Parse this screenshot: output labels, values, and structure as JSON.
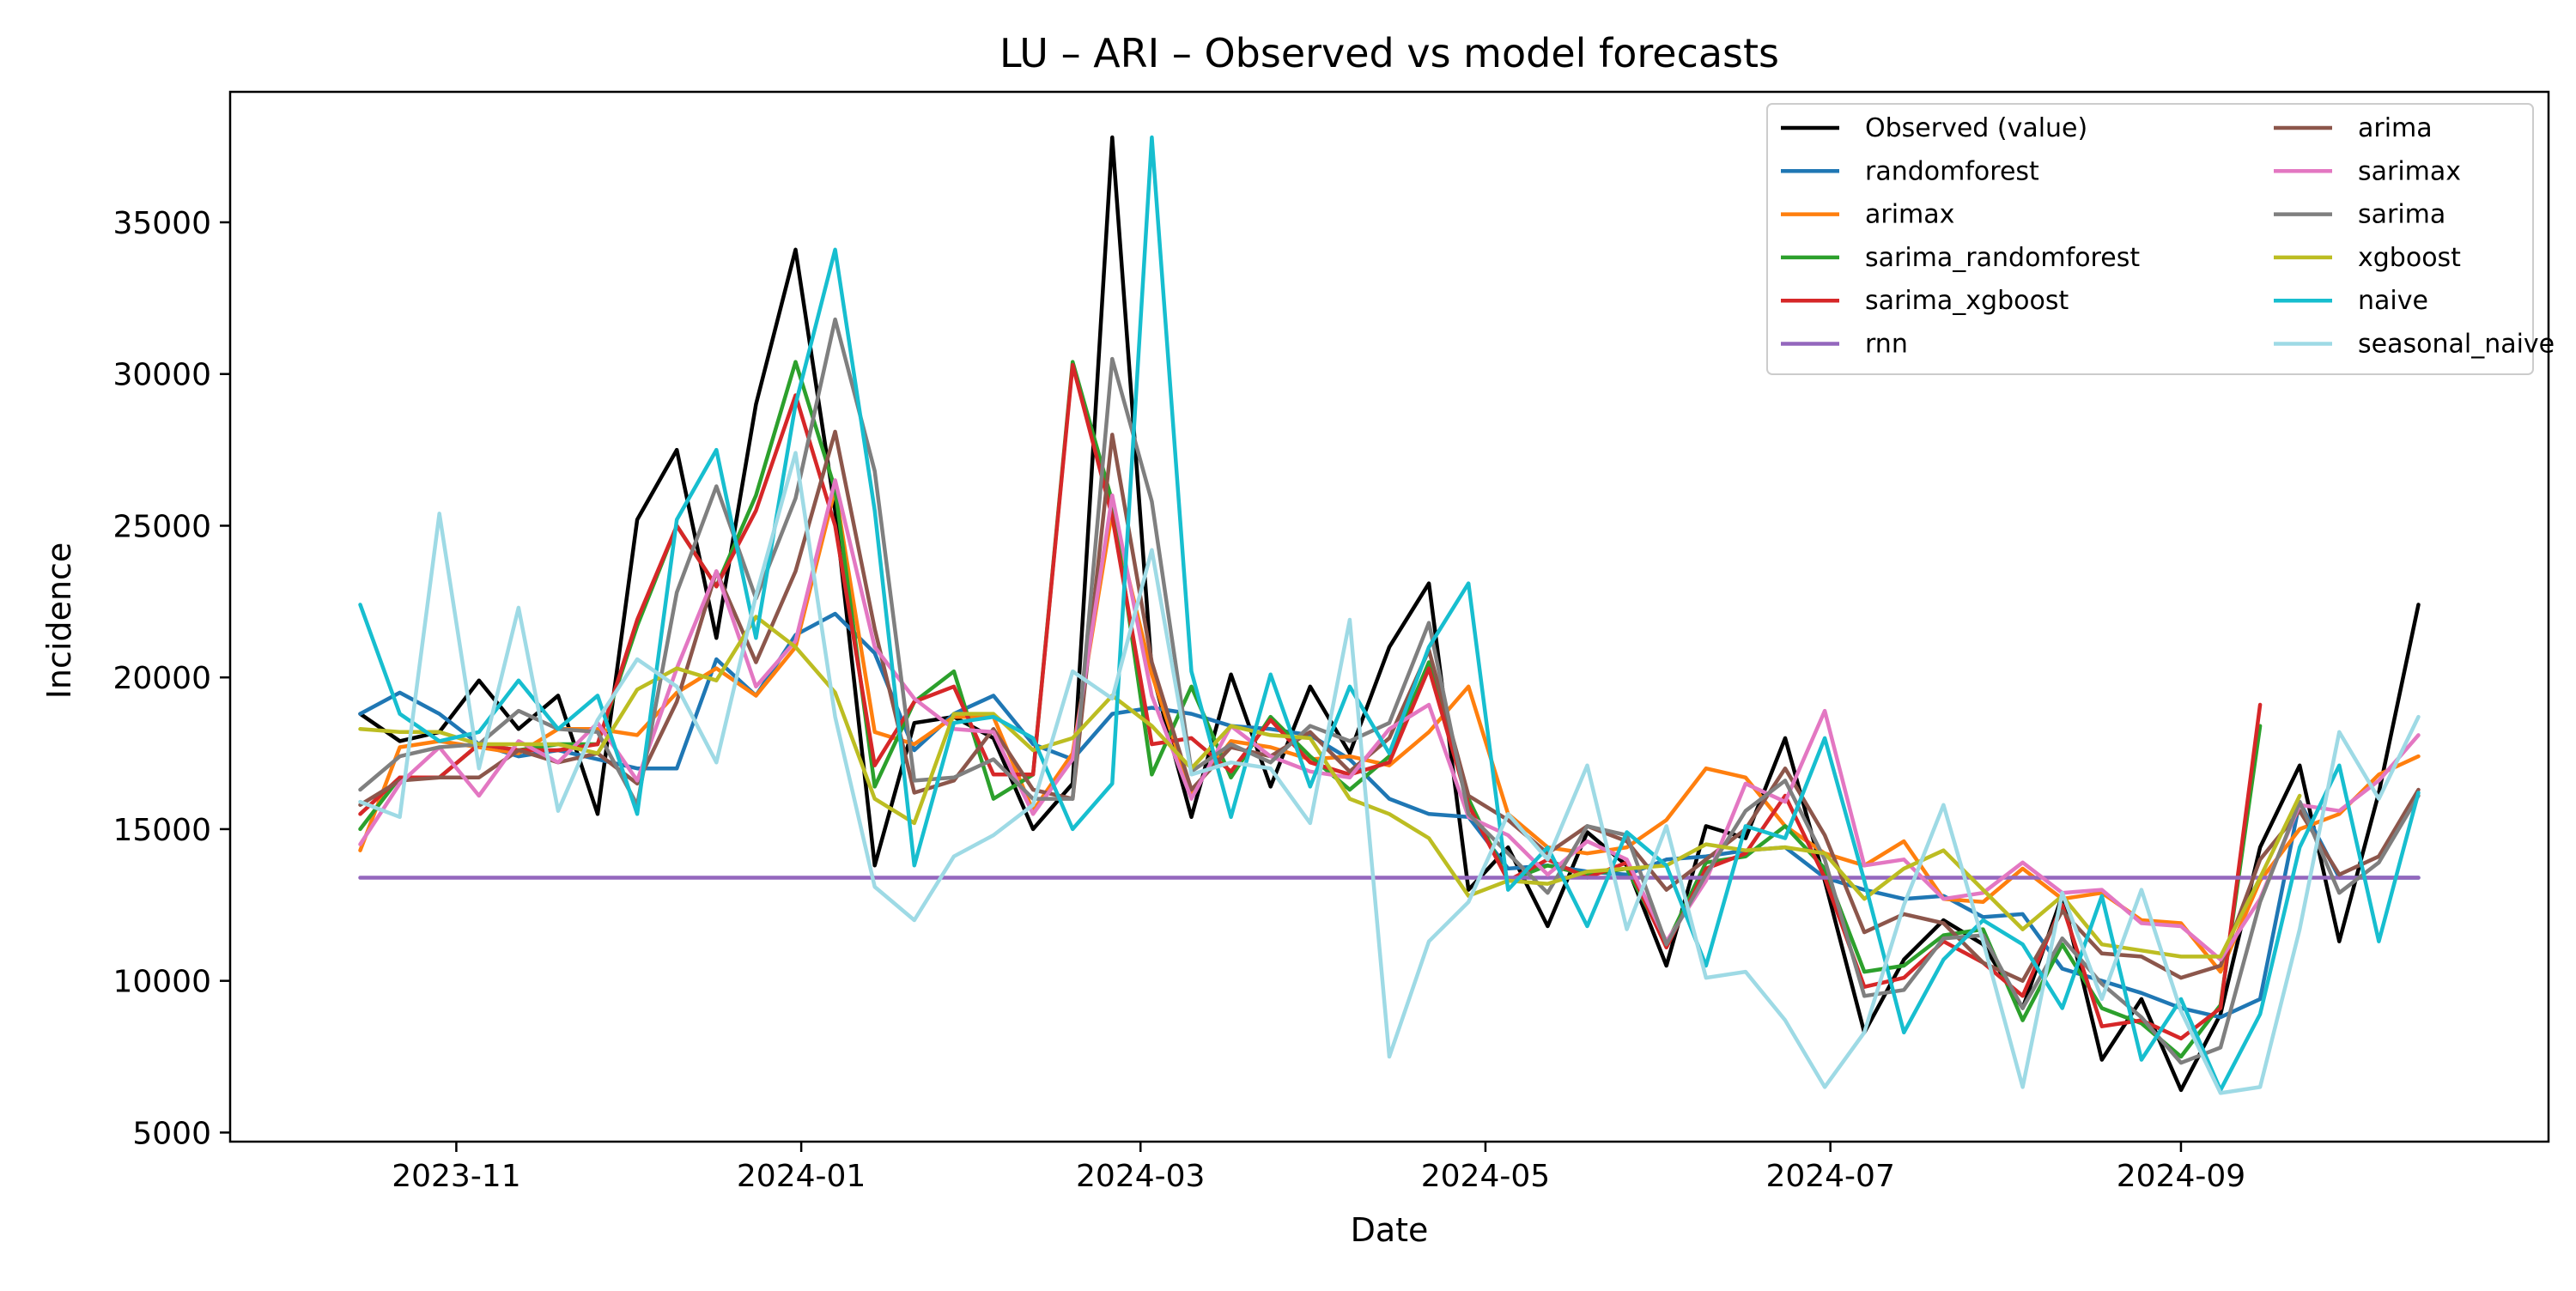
{
  "chart_data": {
    "type": "line",
    "title": "LU – ARI – Observed vs model forecasts",
    "xlabel": "Date",
    "ylabel": "Incidence",
    "x_ticks": [
      "2023-11",
      "2024-01",
      "2024-03",
      "2024-05",
      "2024-07",
      "2024-09"
    ],
    "y_ticks": [
      "5000",
      "10000",
      "15000",
      "20000",
      "25000",
      "30000",
      "35000"
    ],
    "legend_position": "top-right",
    "legend_columns": 2,
    "x_start": "2023-10-15",
    "x_end": "2024-10-13",
    "x": [
      "2023-10-15",
      "2023-10-22",
      "2023-10-29",
      "2023-11-05",
      "2023-11-12",
      "2023-11-19",
      "2023-11-26",
      "2023-12-03",
      "2023-12-10",
      "2023-12-17",
      "2023-12-24",
      "2023-12-31",
      "2024-01-07",
      "2024-01-14",
      "2024-01-21",
      "2024-01-28",
      "2024-02-04",
      "2024-02-11",
      "2024-02-18",
      "2024-02-25",
      "2024-03-03",
      "2024-03-10",
      "2024-03-17",
      "2024-03-24",
      "2024-03-31",
      "2024-04-07",
      "2024-04-14",
      "2024-04-21",
      "2024-04-28",
      "2024-05-05",
      "2024-05-12",
      "2024-05-19",
      "2024-05-26",
      "2024-06-02",
      "2024-06-09",
      "2024-06-16",
      "2024-06-23",
      "2024-06-30",
      "2024-07-07",
      "2024-07-14",
      "2024-07-21",
      "2024-07-28",
      "2024-08-04",
      "2024-08-11",
      "2024-08-18",
      "2024-08-25",
      "2024-09-01",
      "2024-09-08",
      "2024-09-15",
      "2024-09-22",
      "2024-09-29",
      "2024-10-06",
      "2024-10-13"
    ],
    "ylim": [
      4700,
      39300
    ],
    "series": [
      {
        "name": "Observed (value)",
        "color": "#000000",
        "values": [
          18800,
          17900,
          18200,
          19900,
          18300,
          19400,
          15500,
          25200,
          27500,
          21300,
          29000,
          34100,
          25500,
          13800,
          18500,
          18700,
          18000,
          15000,
          16500,
          37800,
          20200,
          15400,
          20100,
          16400,
          19700,
          17500,
          21000,
          23100,
          13000,
          14400,
          11800,
          14900,
          13800,
          10500,
          15100,
          14700,
          18000,
          13300,
          8300,
          10700,
          12000,
          11200,
          9100,
          12800,
          7400,
          9400,
          6400,
          8900,
          14400,
          17100,
          11300,
          16200,
          22400
        ]
      },
      {
        "name": "randomforest",
        "color": "#1f77b4",
        "values": [
          18800,
          19500,
          18800,
          17800,
          17400,
          17600,
          17300,
          17000,
          17000,
          20600,
          19400,
          21400,
          22100,
          20800,
          17600,
          18800,
          19400,
          17800,
          17300,
          18800,
          19000,
          18800,
          18400,
          18300,
          18100,
          17300,
          16000,
          15500,
          15400,
          13700,
          13800,
          13600,
          13500,
          14000,
          14100,
          14300,
          14400,
          13400,
          13000,
          12700,
          12800,
          12100,
          12200,
          10400,
          10000,
          9600,
          9100,
          8800,
          9400,
          15900,
          13400,
          13400,
          13400
        ]
      },
      {
        "name": "arimax",
        "color": "#ff7f0e",
        "values": [
          14300,
          17700,
          17900,
          17700,
          17500,
          18300,
          18300,
          18100,
          19500,
          20300,
          19400,
          21000,
          26200,
          18200,
          17800,
          18700,
          18700,
          15600,
          17500,
          25500,
          20100,
          16200,
          17900,
          17700,
          17300,
          17400,
          17100,
          18200,
          19700,
          15500,
          14400,
          14200,
          14400,
          15300,
          17000,
          16700,
          15100,
          14200,
          13800,
          14600,
          12700,
          12600,
          13700,
          12700,
          12900,
          12000,
          11900,
          10300,
          13300,
          15000,
          15500,
          16800,
          17400
        ]
      },
      {
        "name": "sarima_randomforest",
        "color": "#2ca02c",
        "values": [
          15000,
          16700,
          16700,
          17800,
          17600,
          17800,
          17800,
          21700,
          25000,
          23000,
          26000,
          30400,
          26200,
          16400,
          19200,
          20200,
          16000,
          16800,
          30400,
          25800,
          16800,
          19700,
          16700,
          18700,
          17400,
          16300,
          17400,
          20500,
          16000,
          13300,
          13800,
          13500,
          13700,
          11200,
          13900,
          14100,
          15100,
          13700,
          10300,
          10500,
          11500,
          11700,
          8700,
          11200,
          9100,
          8600,
          7500,
          9200,
          18400,
          null,
          null,
          null,
          null
        ]
      },
      {
        "name": "sarima_xgboost",
        "color": "#d62728",
        "values": [
          15500,
          16700,
          16700,
          17800,
          17600,
          17600,
          17800,
          21900,
          25000,
          23000,
          25500,
          29300,
          25000,
          17100,
          19200,
          19700,
          16800,
          16800,
          30300,
          25300,
          17800,
          18000,
          16900,
          18600,
          17200,
          16800,
          17200,
          20300,
          15800,
          13300,
          14000,
          13400,
          13900,
          11100,
          13700,
          14200,
          16100,
          13400,
          9800,
          10100,
          11300,
          10600,
          9500,
          12500,
          8500,
          8700,
          8100,
          9100,
          19100,
          null,
          null,
          null,
          null
        ]
      },
      {
        "name": "rnn",
        "color": "#9467bd",
        "values": [
          13400,
          13400,
          13400,
          13400,
          13400,
          13400,
          13400,
          13400,
          13400,
          13400,
          13400,
          13400,
          13400,
          13400,
          13400,
          13400,
          13400,
          13400,
          13400,
          13400,
          13400,
          13400,
          13400,
          13400,
          13400,
          13400,
          13400,
          13400,
          13400,
          13400,
          13400,
          13400,
          13400,
          13400,
          13400,
          13400,
          13400,
          13400,
          13400,
          13400,
          13400,
          13400,
          13400,
          13400,
          13400,
          13400,
          13400,
          13400,
          13400,
          13400,
          13400,
          13400,
          13400
        ]
      },
      {
        "name": "arima",
        "color": "#8c564b",
        "values": [
          15800,
          16600,
          16700,
          16700,
          17600,
          17200,
          17500,
          16500,
          19200,
          23500,
          20500,
          23500,
          28100,
          21600,
          16200,
          16600,
          18300,
          16300,
          16000,
          28000,
          20500,
          16300,
          17700,
          17400,
          18200,
          16900,
          18000,
          20900,
          16100,
          15300,
          14200,
          15100,
          14600,
          13000,
          14000,
          15000,
          17000,
          14800,
          11600,
          12200,
          11900,
          10600,
          10000,
          12300,
          10900,
          10800,
          10100,
          10500,
          14000,
          15600,
          13500,
          14100,
          16300
        ]
      },
      {
        "name": "sarimax",
        "color": "#e377c2",
        "values": [
          14500,
          16500,
          17700,
          16100,
          17900,
          17200,
          18500,
          16600,
          20300,
          23500,
          19700,
          21200,
          26500,
          21000,
          19300,
          18300,
          18200,
          15500,
          17300,
          26000,
          19400,
          16000,
          18400,
          17400,
          16900,
          16700,
          18300,
          19100,
          15400,
          14800,
          13500,
          14600,
          14000,
          11300,
          13300,
          16500,
          15900,
          18900,
          13800,
          14000,
          12700,
          12900,
          13900,
          12900,
          13000,
          11900,
          11800,
          10700,
          12700,
          15800,
          15600,
          16600,
          18100
        ]
      },
      {
        "name": "sarima",
        "color": "#7f7f7f",
        "values": [
          16300,
          17400,
          17700,
          17800,
          18900,
          18300,
          18200,
          15800,
          22800,
          26300,
          22600,
          25900,
          31800,
          26800,
          16600,
          16700,
          17300,
          16000,
          16000,
          30500,
          25800,
          16900,
          17800,
          17200,
          18400,
          17900,
          18500,
          21800,
          15500,
          14200,
          12900,
          15100,
          14800,
          11200,
          13500,
          15600,
          16600,
          14000,
          9500,
          9700,
          11400,
          11500,
          9100,
          11400,
          9900,
          8800,
          7300,
          7800,
          12600,
          15900,
          12900,
          13900,
          16100
        ]
      },
      {
        "name": "xgboost",
        "color": "#bcbd22",
        "values": [
          18300,
          18200,
          18200,
          17800,
          17800,
          17800,
          17500,
          19600,
          20300,
          19900,
          22000,
          21000,
          19500,
          16000,
          15200,
          18800,
          18800,
          17600,
          18000,
          19400,
          18400,
          17000,
          18400,
          18100,
          18000,
          16000,
          15500,
          14700,
          12800,
          13300,
          13200,
          13600,
          13700,
          13800,
          14500,
          14300,
          14400,
          14200,
          12700,
          13700,
          14300,
          13000,
          11700,
          12800,
          11200,
          11000,
          10800,
          10800,
          13400,
          16100,
          null,
          null,
          null
        ]
      },
      {
        "name": "naive",
        "color": "#17becf",
        "values": [
          22400,
          18800,
          17900,
          18200,
          19900,
          18300,
          19400,
          15500,
          25200,
          27500,
          21300,
          29000,
          34100,
          25500,
          13800,
          18500,
          18700,
          18000,
          15000,
          16500,
          37800,
          20200,
          15400,
          20100,
          16400,
          19700,
          17500,
          21000,
          23100,
          13000,
          14400,
          11800,
          14900,
          13800,
          10500,
          15100,
          14700,
          18000,
          13300,
          8300,
          10700,
          12000,
          11200,
          9100,
          12800,
          7400,
          9400,
          6400,
          8900,
          14400,
          17100,
          11300,
          16200
        ]
      },
      {
        "name": "seasonal_naive",
        "color": "#9edae5",
        "values": [
          15900,
          15400,
          25400,
          17000,
          22300,
          15600,
          18600,
          20600,
          19700,
          17200,
          22700,
          27400,
          18700,
          13100,
          12000,
          14100,
          14800,
          15800,
          20200,
          19300,
          24200,
          16800,
          17200,
          17000,
          15200,
          21900,
          7500,
          11300,
          12600,
          15500,
          14000,
          17100,
          11700,
          15100,
          10100,
          10300,
          8700,
          6500,
          8300,
          12500,
          15800,
          11300,
          6500,
          12900,
          9400,
          13000,
          9000,
          6300,
          6500,
          11700,
          18200,
          16000,
          18700
        ]
      }
    ]
  }
}
